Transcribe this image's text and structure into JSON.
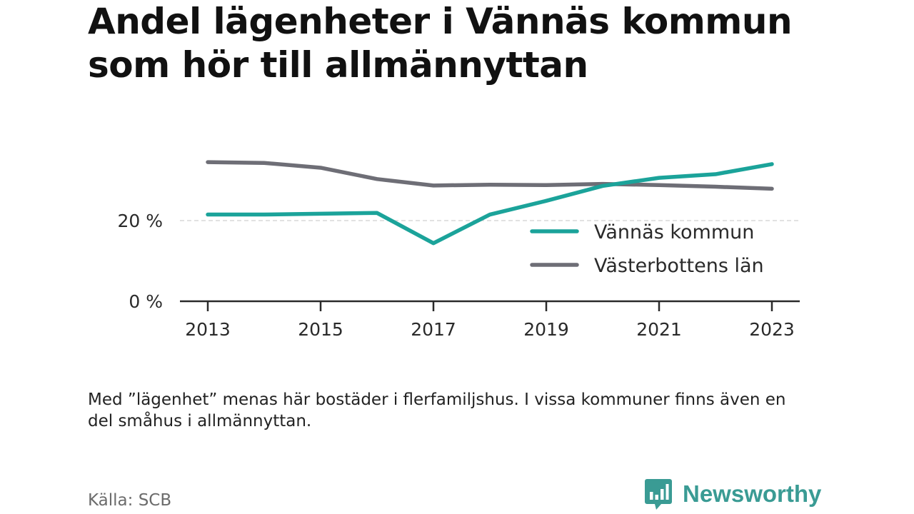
{
  "title": "Andel lägenheter i Vännäs kommun som hör till allmännyttan",
  "note": "Med ”lägenhet” menas här bostäder i flerfamiljshus. I vissa kommuner finns även en del småhus i allmännyttan.",
  "source": "Källa: SCB",
  "brand": {
    "name": "Newsworthy",
    "color": "#3a9b94",
    "icon": "newsworthy-chat-bars-icon"
  },
  "chart_data": {
    "type": "line",
    "x": [
      2013,
      2014,
      2015,
      2016,
      2017,
      2018,
      2019,
      2020,
      2021,
      2022,
      2023
    ],
    "x_tick_labels": [
      "2013",
      "2015",
      "2017",
      "2019",
      "2021",
      "2023"
    ],
    "y_tick_labels": [
      "0 %",
      "20 %"
    ],
    "y_ticks": [
      0,
      20
    ],
    "ylim": [
      0,
      40
    ],
    "grid": "horizontal dashed at 20 %",
    "legend_position": "bottom-right inside plot",
    "series": [
      {
        "name": "Vännäs kommun",
        "color": "#1ba39a",
        "values": [
          21.5,
          21.5,
          21.7,
          21.9,
          14.4,
          21.5,
          24.9,
          28.6,
          30.6,
          31.5,
          34.0
        ]
      },
      {
        "name": "Västerbottens län",
        "color": "#6e6e76",
        "values": [
          34.5,
          34.3,
          33.1,
          30.3,
          28.7,
          28.9,
          28.8,
          29.1,
          28.8,
          28.4,
          27.9
        ]
      }
    ]
  }
}
